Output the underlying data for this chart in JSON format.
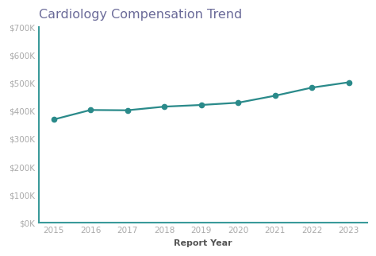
{
  "title": "Cardiology Compensation Trend",
  "xlabel": "Report Year",
  "ylabel": "",
  "x": [
    2015,
    2016,
    2017,
    2018,
    2019,
    2020,
    2021,
    2022,
    2023
  ],
  "y": [
    370000,
    404000,
    403000,
    416000,
    422000,
    430000,
    455000,
    484000,
    503000
  ],
  "line_color": "#2a8a8a",
  "marker_color": "#2a8a8a",
  "background_color": "#ffffff",
  "title_color": "#6b6b99",
  "spine_color": "#3a9a9a",
  "tick_label_color": "#aaaaaa",
  "xlabel_color": "#555555",
  "ylim": [
    0,
    700000
  ],
  "xlim": [
    2014.6,
    2023.5
  ],
  "ytick_values": [
    0,
    100000,
    200000,
    300000,
    400000,
    500000,
    600000,
    700000
  ],
  "title_fontsize": 11.5,
  "label_fontsize": 8,
  "tick_fontsize": 7.5
}
